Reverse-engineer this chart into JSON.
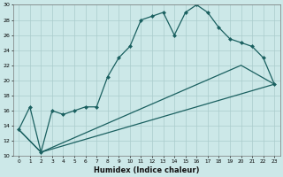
{
  "xlabel": "Humidex (Indice chaleur)",
  "bg_color": "#cce8e8",
  "grid_color": "#aacccc",
  "line_color": "#1a6060",
  "xlim": [
    -0.5,
    23.5
  ],
  "ylim": [
    10,
    30
  ],
  "xticks": [
    0,
    1,
    2,
    3,
    4,
    5,
    6,
    7,
    8,
    9,
    10,
    11,
    12,
    13,
    14,
    15,
    16,
    17,
    18,
    19,
    20,
    21,
    22,
    23
  ],
  "yticks": [
    10,
    12,
    14,
    16,
    18,
    20,
    22,
    24,
    26,
    28,
    30
  ],
  "line1_x": [
    0,
    1,
    2,
    3,
    4,
    5,
    6,
    7,
    8,
    9,
    10,
    11,
    12,
    13,
    14,
    15,
    16,
    17,
    18,
    19,
    20,
    21,
    22,
    23
  ],
  "line1_y": [
    13.5,
    16.5,
    10.5,
    16,
    15.5,
    16,
    16.5,
    16.5,
    20.5,
    23,
    24.5,
    28,
    28.5,
    29,
    26,
    29,
    30,
    29,
    27,
    25.5,
    25,
    24.5,
    23,
    19.5
  ],
  "line2_x": [
    0,
    2,
    23
  ],
  "line2_y": [
    13.5,
    10.5,
    19.5
  ],
  "line3_x": [
    0,
    2,
    20,
    23
  ],
  "line3_y": [
    13.5,
    10.5,
    22.0,
    19.5
  ]
}
